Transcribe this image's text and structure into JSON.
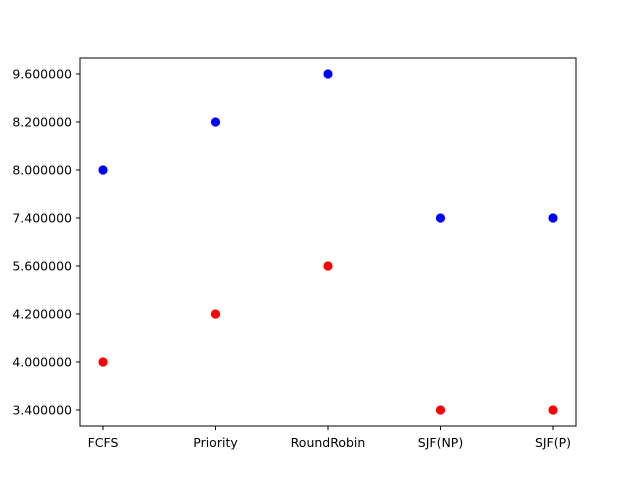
{
  "chart_data": {
    "type": "scatter",
    "title": "",
    "xlabel": "",
    "ylabel": "",
    "x_tick_labels": [
      "FCFS",
      "Priority",
      "RoundRobin",
      "SJF(NP)",
      "SJF(P)"
    ],
    "y_tick_labels": [
      "3.400000",
      "4.000000",
      "4.200000",
      "5.600000",
      "7.400000",
      "8.000000",
      "8.200000",
      "9.600000"
    ],
    "y_axis_note": "categorical",
    "grid": false,
    "legend": "none",
    "series": [
      {
        "color": "#0000ff",
        "points": [
          {
            "x": "FCFS",
            "y": "8.000000"
          },
          {
            "x": "Priority",
            "y": "8.200000"
          },
          {
            "x": "RoundRobin",
            "y": "9.600000"
          },
          {
            "x": "SJF(NP)",
            "y": "7.400000"
          },
          {
            "x": "SJF(P)",
            "y": "7.400000"
          }
        ]
      },
      {
        "color": "#ff0000",
        "points": [
          {
            "x": "FCFS",
            "y": "4.000000"
          },
          {
            "x": "Priority",
            "y": "4.200000"
          },
          {
            "x": "RoundRobin",
            "y": "5.600000"
          },
          {
            "x": "SJF(NP)",
            "y": "3.400000"
          },
          {
            "x": "SJF(P)",
            "y": "3.400000"
          }
        ]
      }
    ]
  }
}
